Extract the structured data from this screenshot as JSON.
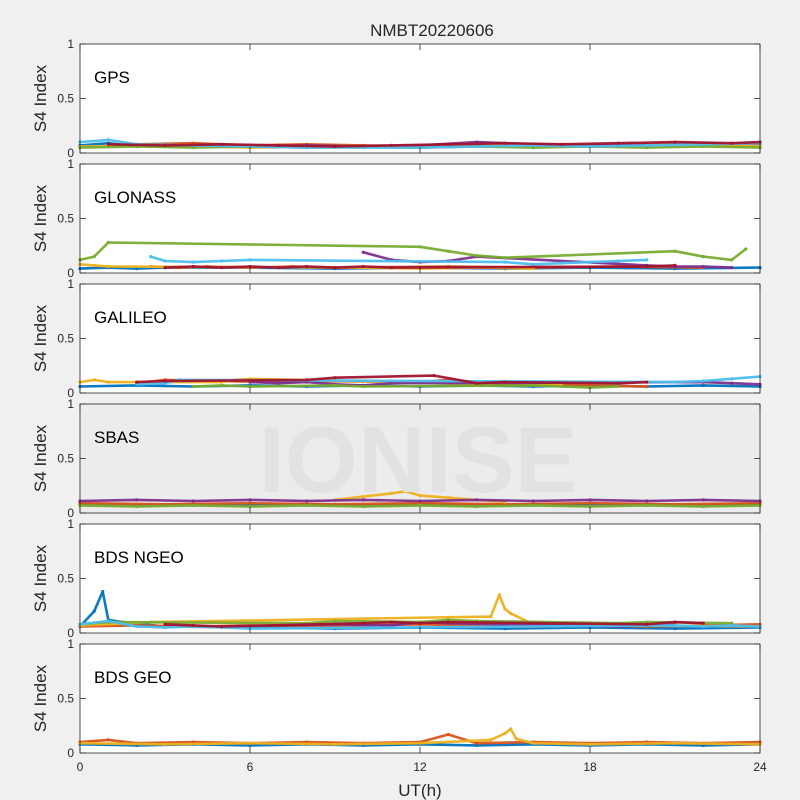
{
  "title": "NMBT20220606",
  "watermark": "IONISE",
  "xlabel": "UT(h)",
  "ylabel": "S4 Index",
  "series_colors": [
    "#0072BD",
    "#D95319",
    "#EDB120",
    "#7E2F8E",
    "#77AC30",
    "#4DBEEE",
    "#A2142F"
  ],
  "chart_data": [
    {
      "type": "scatter",
      "panel_label": "GPS",
      "xlim": [
        0,
        24
      ],
      "ylim": [
        0,
        1
      ],
      "xticks": [
        0,
        6,
        12,
        18,
        24
      ],
      "yticks": [
        0,
        0.5,
        1
      ],
      "ytick_labels": [
        "0",
        "0.5",
        "1"
      ],
      "series": [
        {
          "x": [
            0,
            1,
            2,
            3,
            4,
            5
          ],
          "y": [
            0.07,
            0.09,
            0.06,
            0.08,
            0.07,
            0.06
          ]
        },
        {
          "x": [
            2,
            4,
            6,
            8,
            10,
            12,
            14,
            16,
            18,
            20,
            22,
            24
          ],
          "y": [
            0.08,
            0.09,
            0.07,
            0.08,
            0.07,
            0.06,
            0.07,
            0.08,
            0.07,
            0.08,
            0.09,
            0.08
          ]
        },
        {
          "x": [
            0,
            3,
            6,
            9,
            12,
            15,
            18,
            21,
            24
          ],
          "y": [
            0.06,
            0.07,
            0.05,
            0.06,
            0.05,
            0.07,
            0.06,
            0.07,
            0.06
          ]
        },
        {
          "x": [
            4,
            6,
            8,
            10,
            12,
            14,
            16,
            18,
            20
          ],
          "y": [
            0.07,
            0.06,
            0.07,
            0.06,
            0.07,
            0.1,
            0.08,
            0.07,
            0.08
          ]
        },
        {
          "x": [
            0,
            2,
            4,
            6,
            8,
            10,
            12,
            14,
            16,
            18,
            20,
            22,
            24
          ],
          "y": [
            0.05,
            0.06,
            0.05,
            0.06,
            0.05,
            0.06,
            0.05,
            0.06,
            0.05,
            0.06,
            0.05,
            0.06,
            0.05
          ]
        },
        {
          "x": [
            0,
            1,
            2,
            4,
            6,
            8,
            10,
            12,
            14,
            16,
            18,
            20,
            22,
            24
          ],
          "y": [
            0.1,
            0.12,
            0.08,
            0.07,
            0.06,
            0.05,
            0.05,
            0.05,
            0.06,
            0.07,
            0.06,
            0.07,
            0.08,
            0.09
          ]
        },
        {
          "x": [
            1,
            3,
            5,
            7,
            9,
            11,
            13,
            15,
            17,
            19,
            21,
            23,
            24
          ],
          "y": [
            0.08,
            0.07,
            0.08,
            0.07,
            0.06,
            0.07,
            0.08,
            0.09,
            0.08,
            0.09,
            0.1,
            0.09,
            0.1
          ]
        }
      ]
    },
    {
      "type": "scatter",
      "panel_label": "GLONASS",
      "xlim": [
        0,
        24
      ],
      "ylim": [
        0,
        1
      ],
      "xticks": [
        0,
        6,
        12,
        18,
        24
      ],
      "yticks": [
        0,
        0.5,
        1
      ],
      "ytick_labels": [
        "0",
        "0.5",
        "1"
      ],
      "series": [
        {
          "x": [
            0,
            1,
            2,
            3,
            6,
            9,
            12,
            15,
            18,
            21,
            24
          ],
          "y": [
            0.04,
            0.05,
            0.04,
            0.05,
            0.05,
            0.04,
            0.05,
            0.04,
            0.05,
            0.04,
            0.05
          ]
        },
        {
          "x": [
            2.5,
            3.5,
            4.5,
            6,
            7.5,
            9,
            13,
            16,
            19,
            22
          ],
          "y": [
            0.06,
            0.05,
            0.06,
            0.05,
            0.06,
            0.05,
            0.06,
            0.05,
            0.06,
            0.05
          ]
        },
        {
          "x": [
            0,
            0.5,
            1,
            10,
            12,
            14,
            16
          ],
          "y": [
            0.08,
            0.07,
            0.06,
            0.05,
            0.04,
            0.05,
            0.04
          ]
        },
        {
          "x": [
            10,
            11,
            12,
            13,
            14,
            20,
            21,
            22,
            23
          ],
          "y": [
            0.19,
            0.12,
            0.1,
            0.11,
            0.15,
            0.07,
            0.06,
            0.06,
            0.05
          ]
        },
        {
          "x": [
            0,
            0.5,
            1,
            12,
            13,
            14,
            15,
            21,
            22,
            23,
            23.5
          ],
          "y": [
            0.12,
            0.15,
            0.28,
            0.24,
            0.2,
            0.16,
            0.14,
            0.2,
            0.15,
            0.12,
            0.22
          ]
        },
        {
          "x": [
            2.5,
            3,
            4,
            5,
            6,
            15,
            16,
            17,
            18,
            19,
            20
          ],
          "y": [
            0.15,
            0.11,
            0.1,
            0.11,
            0.12,
            0.1,
            0.08,
            0.09,
            0.1,
            0.11,
            0.12
          ]
        },
        {
          "x": [
            3,
            4,
            5,
            6,
            7,
            8,
            9,
            10,
            11,
            20,
            21
          ],
          "y": [
            0.05,
            0.06,
            0.05,
            0.06,
            0.05,
            0.06,
            0.05,
            0.06,
            0.05,
            0.06,
            0.07
          ]
        }
      ]
    },
    {
      "type": "scatter",
      "panel_label": "GALILEO",
      "xlim": [
        0,
        24
      ],
      "ylim": [
        0,
        1
      ],
      "xticks": [
        0,
        6,
        12,
        18,
        24
      ],
      "yticks": [
        0,
        0.5,
        1
      ],
      "ytick_labels": [
        "0",
        "0.5",
        "1"
      ],
      "series": [
        {
          "x": [
            0,
            2,
            4,
            6,
            8,
            10,
            12,
            14,
            16,
            18,
            20,
            22,
            24
          ],
          "y": [
            0.06,
            0.07,
            0.06,
            0.07,
            0.06,
            0.07,
            0.06,
            0.07,
            0.06,
            0.07,
            0.06,
            0.07,
            0.06
          ]
        },
        {
          "x": [
            2,
            3,
            7,
            8,
            12,
            13,
            14,
            16,
            18,
            20
          ],
          "y": [
            0.09,
            0.12,
            0.1,
            0.11,
            0.1,
            0.12,
            0.09,
            0.08,
            0.07,
            0.06
          ]
        },
        {
          "x": [
            0,
            0.5,
            1,
            5,
            5.5,
            6,
            13,
            14,
            15,
            17
          ],
          "y": [
            0.1,
            0.12,
            0.1,
            0.1,
            0.12,
            0.13,
            0.09,
            0.08,
            0.1,
            0.08
          ]
        },
        {
          "x": [
            6,
            7,
            8,
            9,
            10,
            11,
            22,
            23,
            24
          ],
          "y": [
            0.1,
            0.09,
            0.1,
            0.08,
            0.07,
            0.09,
            0.1,
            0.09,
            0.08
          ]
        },
        {
          "x": [
            4,
            5,
            6,
            9,
            10,
            16,
            17,
            18,
            19
          ],
          "y": [
            0.06,
            0.07,
            0.06,
            0.07,
            0.06,
            0.07,
            0.06,
            0.05,
            0.06
          ]
        },
        {
          "x": [
            2,
            3,
            3.5,
            21,
            22,
            23,
            24
          ],
          "y": [
            0.08,
            0.09,
            0.12,
            0.1,
            0.11,
            0.13,
            0.15
          ]
        },
        {
          "x": [
            2,
            3,
            8,
            9,
            12.5,
            14,
            15,
            19,
            20
          ],
          "y": [
            0.1,
            0.11,
            0.12,
            0.14,
            0.16,
            0.09,
            0.1,
            0.09,
            0.1
          ]
        }
      ]
    },
    {
      "type": "scatter",
      "panel_label": "SBAS",
      "xlim": [
        0,
        24
      ],
      "ylim": [
        0,
        1
      ],
      "xticks": [
        0,
        6,
        12,
        18,
        24
      ],
      "yticks": [
        0,
        0.5,
        1
      ],
      "ytick_labels": [
        "0",
        "0.5",
        "1"
      ],
      "series": [
        {
          "x": [
            0,
            2,
            4,
            6,
            8,
            10,
            12,
            14,
            16,
            18,
            20,
            22,
            24
          ],
          "y": [
            0.08,
            0.07,
            0.08,
            0.07,
            0.08,
            0.07,
            0.08,
            0.07,
            0.08,
            0.07,
            0.08,
            0.07,
            0.08
          ]
        },
        {
          "x": [
            0,
            3,
            6,
            9,
            12,
            15,
            18,
            21,
            24
          ],
          "y": [
            0.09,
            0.08,
            0.09,
            0.08,
            0.09,
            0.08,
            0.09,
            0.08,
            0.09
          ]
        },
        {
          "x": [
            9,
            10,
            11,
            11.5,
            12,
            13,
            14,
            15
          ],
          "y": [
            0.12,
            0.15,
            0.18,
            0.2,
            0.16,
            0.14,
            0.12,
            0.1
          ]
        },
        {
          "x": [
            0,
            2,
            4,
            6,
            8,
            10,
            12,
            14,
            16,
            18,
            20,
            22,
            24
          ],
          "y": [
            0.11,
            0.12,
            0.11,
            0.12,
            0.11,
            0.12,
            0.11,
            0.12,
            0.11,
            0.12,
            0.11,
            0.12,
            0.11
          ]
        },
        {
          "x": [
            0,
            2,
            4,
            6,
            8,
            10,
            12,
            14,
            16,
            18,
            20,
            22,
            24
          ],
          "y": [
            0.07,
            0.06,
            0.07,
            0.06,
            0.07,
            0.06,
            0.07,
            0.06,
            0.07,
            0.06,
            0.07,
            0.06,
            0.07
          ]
        }
      ]
    },
    {
      "type": "scatter",
      "panel_label": "BDS NGEO",
      "xlim": [
        0,
        24
      ],
      "ylim": [
        0,
        1
      ],
      "xticks": [
        0,
        6,
        12,
        18,
        24
      ],
      "yticks": [
        0,
        0.5,
        1
      ],
      "ytick_labels": [
        "0",
        "0.5",
        "1"
      ],
      "series": [
        {
          "x": [
            0,
            0.5,
            0.8,
            1,
            1.5,
            3,
            6,
            9,
            12,
            15,
            18,
            21,
            24
          ],
          "y": [
            0.06,
            0.2,
            0.38,
            0.12,
            0.1,
            0.06,
            0.05,
            0.04,
            0.05,
            0.04,
            0.05,
            0.04,
            0.05
          ]
        },
        {
          "x": [
            0,
            2,
            4,
            6,
            8,
            10,
            12,
            14,
            16,
            18,
            20,
            22,
            24
          ],
          "y": [
            0.06,
            0.07,
            0.06,
            0.07,
            0.06,
            0.07,
            0.08,
            0.07,
            0.06,
            0.07,
            0.06,
            0.07,
            0.08
          ]
        },
        {
          "x": [
            0,
            2.5,
            14.5,
            14.8,
            15,
            15.2,
            16,
            20,
            24
          ],
          "y": [
            0.07,
            0.1,
            0.15,
            0.35,
            0.22,
            0.18,
            0.08,
            0.07,
            0.06
          ]
        },
        {
          "x": [
            5,
            7,
            9,
            11,
            12,
            13,
            15,
            17,
            19,
            21
          ],
          "y": [
            0.06,
            0.07,
            0.08,
            0.07,
            0.1,
            0.09,
            0.08,
            0.07,
            0.06,
            0.08
          ]
        },
        {
          "x": [
            0,
            1,
            8,
            9,
            12,
            13,
            14,
            19,
            20,
            23
          ],
          "y": [
            0.08,
            0.1,
            0.09,
            0.11,
            0.1,
            0.12,
            0.11,
            0.09,
            0.1,
            0.09
          ]
        },
        {
          "x": [
            0,
            1,
            2,
            3,
            4,
            5,
            6,
            21,
            22,
            23,
            24
          ],
          "y": [
            0.08,
            0.11,
            0.06,
            0.05,
            0.06,
            0.05,
            0.04,
            0.07,
            0.06,
            0.07,
            0.06
          ]
        },
        {
          "x": [
            3,
            4,
            5,
            10,
            11,
            12,
            13,
            20,
            21,
            22
          ],
          "y": [
            0.08,
            0.07,
            0.06,
            0.09,
            0.1,
            0.09,
            0.1,
            0.08,
            0.1,
            0.09
          ]
        }
      ]
    },
    {
      "type": "scatter",
      "panel_label": "BDS GEO",
      "xlim": [
        0,
        24
      ],
      "ylim": [
        0,
        1
      ],
      "xticks": [
        0,
        6,
        12,
        18,
        24
      ],
      "yticks": [
        0,
        0.5,
        1
      ],
      "ytick_labels": [
        "0",
        "0.5",
        "1"
      ],
      "series": [
        {
          "x": [
            0,
            2,
            4,
            6,
            8,
            10,
            12,
            14,
            16,
            18,
            20,
            22,
            24
          ],
          "y": [
            0.08,
            0.07,
            0.08,
            0.07,
            0.08,
            0.07,
            0.08,
            0.07,
            0.08,
            0.07,
            0.08,
            0.07,
            0.08
          ]
        },
        {
          "x": [
            0,
            1,
            2,
            4,
            6,
            8,
            10,
            12,
            13,
            14,
            16,
            18,
            20,
            22,
            24
          ],
          "y": [
            0.1,
            0.12,
            0.09,
            0.1,
            0.09,
            0.1,
            0.09,
            0.1,
            0.17,
            0.09,
            0.1,
            0.09,
            0.1,
            0.09,
            0.1
          ]
        },
        {
          "x": [
            0,
            3,
            6,
            9,
            12,
            14.5,
            15,
            15.2,
            15.4,
            16,
            18,
            21,
            24
          ],
          "y": [
            0.09,
            0.08,
            0.09,
            0.08,
            0.09,
            0.12,
            0.18,
            0.22,
            0.13,
            0.09,
            0.08,
            0.09,
            0.08
          ]
        }
      ]
    }
  ]
}
